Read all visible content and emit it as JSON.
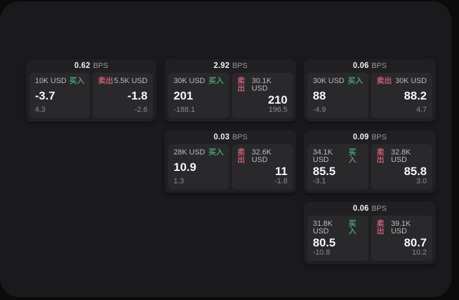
{
  "labels": {
    "bps_unit": "BPS",
    "buy": "买入",
    "sell": "卖出"
  },
  "colors": {
    "buy": "#4a9e6e",
    "sell": "#c75c70",
    "panel_bg": "#29292c",
    "card_bg": "#202023",
    "app_bg": "#1a1a1c"
  },
  "cards": [
    {
      "bps": "0.62",
      "buy": {
        "amount": "10K USD",
        "price": "-3.7",
        "delta": "4.3"
      },
      "sell": {
        "amount": "5.5K USD",
        "price": "-1.8",
        "delta": "-2.6"
      }
    },
    {
      "bps": "2.92",
      "buy": {
        "amount": "30K USD",
        "price": "201",
        "delta": "-188.1"
      },
      "sell": {
        "amount": "30.1K USD",
        "price": "210",
        "delta": "196.5"
      }
    },
    {
      "bps": "0.06",
      "buy": {
        "amount": "30K USD",
        "price": "88",
        "delta": "-4.9"
      },
      "sell": {
        "amount": "30K USD",
        "price": "88.2",
        "delta": "4.7"
      }
    },
    {
      "bps": "0.03",
      "buy": {
        "amount": "28K USD",
        "price": "10.9",
        "delta": "1.3"
      },
      "sell": {
        "amount": "32.6K USD",
        "price": "11",
        "delta": "-1.8"
      }
    },
    {
      "bps": "0.09",
      "buy": {
        "amount": "34.1K USD",
        "price": "85.5",
        "delta": "-3.1"
      },
      "sell": {
        "amount": "32.8K USD",
        "price": "85.8",
        "delta": "3.0"
      }
    },
    {
      "bps": "0.06",
      "buy": {
        "amount": "31.8K USD",
        "price": "80.5",
        "delta": "-10.8"
      },
      "sell": {
        "amount": "39.1K USD",
        "price": "80.7",
        "delta": "10.2"
      }
    }
  ]
}
